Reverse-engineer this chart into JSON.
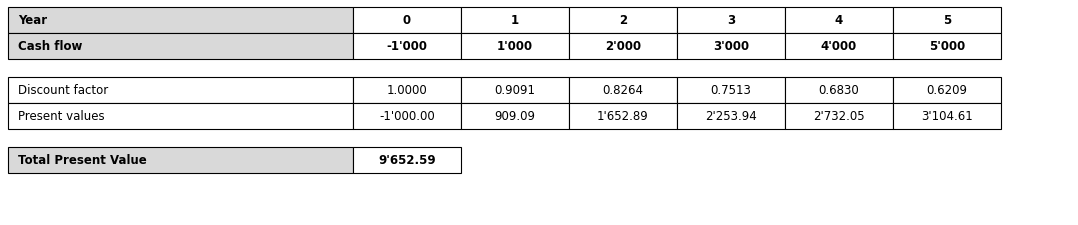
{
  "table1_headers": [
    "Year",
    "0",
    "1",
    "2",
    "3",
    "4",
    "5"
  ],
  "table1_row": [
    "Cash flow",
    "-1'000",
    "1'000",
    "2'000",
    "3'000",
    "4'000",
    "5'000"
  ],
  "table2_rows": [
    [
      "Discount factor",
      "1.0000",
      "0.9091",
      "0.8264",
      "0.7513",
      "0.6830",
      "0.6209"
    ],
    [
      "Present values",
      "-1'000.00",
      "909.09",
      "1'652.89",
      "2'253.94",
      "2'732.05",
      "3'104.61"
    ]
  ],
  "table3_row": [
    "Total Present Value",
    "9'652.59"
  ],
  "header_bg": "#d9d9d9",
  "white_bg": "#ffffff",
  "border_color": "#000000",
  "font_size": 8.5,
  "figwidth": 10.78,
  "figheight": 2.26,
  "dpi": 100
}
